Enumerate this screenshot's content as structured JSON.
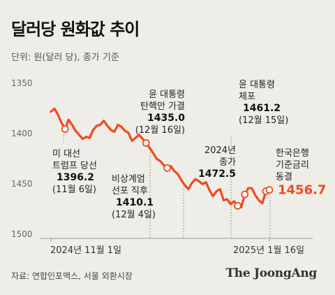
{
  "header": {
    "title": "달러당 원화값 추이",
    "unit": "단위: 원(달러 당), 종가 기준"
  },
  "footer": {
    "source": "자료: 연합인포맥스, 서울 외환시장",
    "logo_text": "The JoongAng"
  },
  "colors": {
    "line": "#f04a1e",
    "accent_text": "#f04a1e",
    "background": "#efede8",
    "axis": "#999999"
  },
  "chart_data": {
    "type": "line",
    "title": "달러당 원화값 추이",
    "ylabel": "단위: 원(달러 당), 종가 기준",
    "y_inverted": true,
    "ylim": [
      1350,
      1500
    ],
    "y_ticks": [
      1350,
      1400,
      1450,
      1500
    ],
    "x_tick_labels": [
      "2024년 11월 1일",
      "2025년 1월 16일"
    ],
    "values": [
      1379,
      1376,
      1382,
      1390,
      1396.2,
      1387,
      1392,
      1398,
      1402,
      1406,
      1404,
      1405,
      1397,
      1393,
      1392,
      1388,
      1393,
      1397,
      1399,
      1392,
      1394,
      1398,
      1400,
      1408,
      1405,
      1402,
      1406,
      1410.1,
      1415,
      1420,
      1426,
      1428,
      1432,
      1435,
      1433,
      1438,
      1441,
      1447,
      1452,
      1456,
      1450,
      1446,
      1448,
      1451,
      1449,
      1457,
      1463,
      1458,
      1456,
      1467,
      1466,
      1471,
      1468,
      1472.5,
      1474,
      1461.2,
      1455,
      1455,
      1462,
      1467,
      1470,
      1458,
      1456.7
    ],
    "markers": [
      4,
      27,
      33,
      53,
      55,
      61,
      62
    ],
    "annotations": [
      {
        "lines": [
          "미 대선",
          "트럼프 당선"
        ],
        "value": "1396.2",
        "date": "(11월 6일)"
      },
      {
        "lines": [
          "비상계엄",
          "선포 직후"
        ],
        "value": "1410.1",
        "date": "(12월 4일)"
      },
      {
        "lines": [
          "윤 대통령",
          "탄핵안 가결"
        ],
        "value": "1435.0",
        "date": "(12월 16일)"
      },
      {
        "lines": [
          "2024년",
          "종가"
        ],
        "value": "1472.5",
        "date": ""
      },
      {
        "lines": [
          "윤 대통령",
          "체포"
        ],
        "value": "1461.2",
        "date": "(12월 15일)"
      },
      {
        "lines": [
          "한국은행",
          "기준금리",
          "동결"
        ],
        "value": "",
        "date": ""
      }
    ],
    "last_value": "1456.7"
  }
}
